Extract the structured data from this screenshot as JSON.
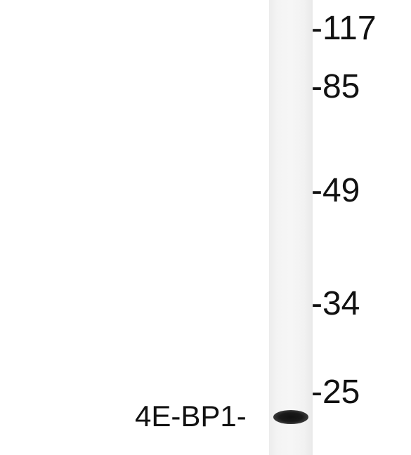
{
  "blot": {
    "markers": [
      "-117",
      "-85",
      "-49",
      "-34",
      "-25"
    ],
    "band_label": "4E-BP1-"
  }
}
